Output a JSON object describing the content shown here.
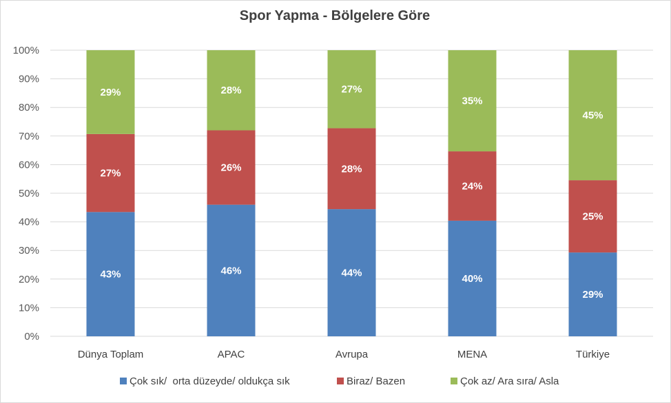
{
  "chart_data": {
    "type": "bar",
    "stacked": true,
    "percent_stacked": true,
    "title": "Spor Yapma  - Bölgelere Göre",
    "categories": [
      "Dünya Toplam",
      "APAC",
      "Avrupa",
      "MENA",
      "Türkiye"
    ],
    "series": [
      {
        "name": "Çok sık/  orta düzeyde/ oldukça sık",
        "color": "#4f81bd",
        "values": [
          43,
          46,
          44,
          40,
          29
        ],
        "labels": [
          "43%",
          "46%",
          "44%",
          "40%",
          "29%"
        ]
      },
      {
        "name": "Biraz/ Bazen",
        "color": "#c0504d",
        "values": [
          27,
          26,
          28,
          24,
          25
        ],
        "labels": [
          "27%",
          "26%",
          "28%",
          "24%",
          "25%"
        ]
      },
      {
        "name": "Çok az/ Ara sıra/ Asla",
        "color": "#9bbb59",
        "values": [
          29,
          28,
          27,
          35,
          45
        ],
        "labels": [
          "29%",
          "28%",
          "27%",
          "35%",
          "45%"
        ]
      }
    ],
    "ylim": [
      0,
      100
    ],
    "yticks": [
      "0%",
      "10%",
      "20%",
      "30%",
      "40%",
      "50%",
      "60%",
      "70%",
      "80%",
      "90%",
      "100%"
    ],
    "grid": true,
    "legend_position": "bottom"
  }
}
